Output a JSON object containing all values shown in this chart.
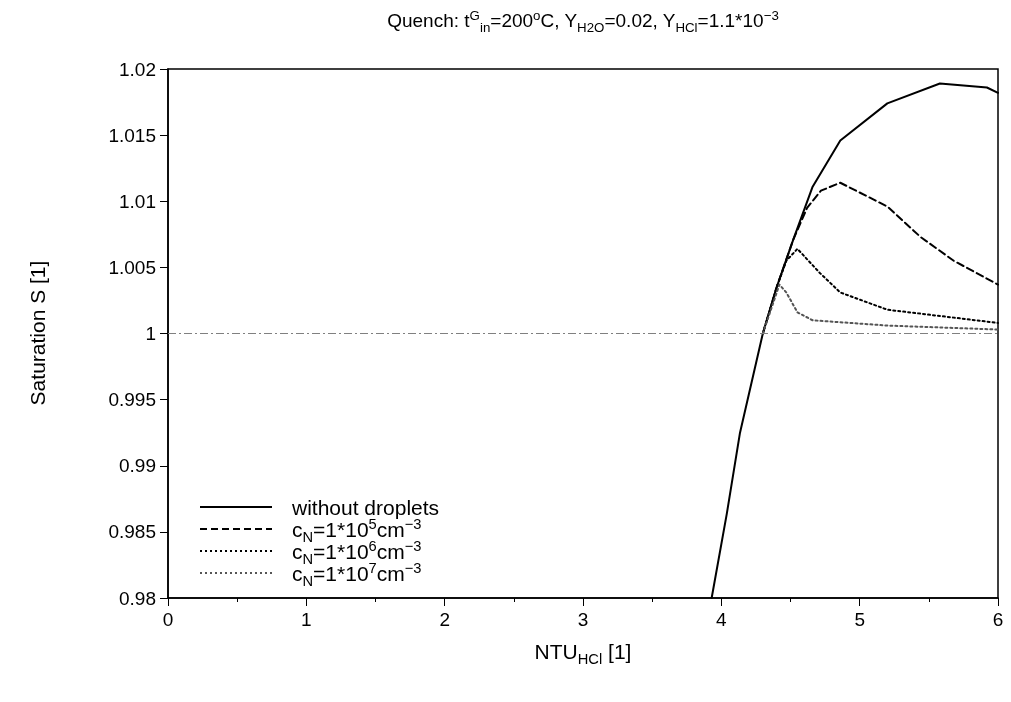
{
  "chart_data": {
    "type": "line",
    "title": "Quench: t$^{G}$$_{in}$=200$^{o}$C, Y$_{H2O}$=0.02, Y$_{HCl}$=1.1*10$^{−3}$",
    "xlabel": "NTU$_{HCl}$ [1]",
    "ylabel": "Saturation S [1]",
    "xlim": [
      0,
      6
    ],
    "xticks": [
      0,
      1,
      2,
      3,
      4,
      5,
      6
    ],
    "ylim": [
      0.98,
      1.02
    ],
    "yticks": [
      0.98,
      0.985,
      0.99,
      0.995,
      1,
      1.005,
      1.01,
      1.015,
      1.02
    ],
    "grid": false,
    "legend": "bottom left",
    "marker": "none",
    "ref_lines": [
      {
        "axis": "y",
        "value": 1,
        "color": "#808080",
        "line_style": "dashdot"
      }
    ],
    "series": [
      {
        "name": "without droplets",
        "color": "#000000",
        "line_style": "solid",
        "x": [
          3.93,
          4.04,
          4.135,
          4.3,
          4.4,
          4.52,
          4.66,
          4.86,
          5.2,
          5.58,
          5.92,
          6
        ],
        "values": [
          0.98,
          0.9864,
          0.9925,
          1.0,
          1.0035,
          1.0071,
          1.0111,
          1.0146,
          1.0174,
          1.0189,
          1.0186,
          1.0182
        ]
      },
      {
        "name": "c$_{N}$=1*10$^{5}$cm$^{−3}$",
        "color": "#000000",
        "line_style": "dashed",
        "x": [
          4.3,
          4.4,
          4.52,
          4.62,
          4.72,
          4.86,
          5.2,
          5.44,
          5.68,
          6
        ],
        "values": [
          1.0,
          1.0035,
          1.0071,
          1.0095,
          1.0108,
          1.0114,
          1.0096,
          1.0073,
          1.0055,
          1.0037
        ]
      },
      {
        "name": "c$_{N}$=1*10$^{6}$cm$^{−3}$",
        "color": "#000000",
        "line_style": "dotted",
        "x": [
          4.3,
          4.4,
          4.47,
          4.55,
          4.71,
          4.86,
          5.2,
          5.68,
          6
        ],
        "values": [
          1.0,
          1.0035,
          1.0055,
          1.0064,
          1.0046,
          1.0031,
          1.0018,
          1.0012,
          1.0008
        ]
      },
      {
        "name": "c$_{N}$=1*10$^{7}$cm$^{−3}$",
        "color": "#555555",
        "line_style": "dotted",
        "x": [
          4.3,
          4.42,
          4.47,
          4.55,
          4.66,
          5.2,
          6
        ],
        "values": [
          1.0,
          1.0037,
          1.0031,
          1.0016,
          1.001,
          1.0006,
          1.0003
        ]
      }
    ]
  }
}
